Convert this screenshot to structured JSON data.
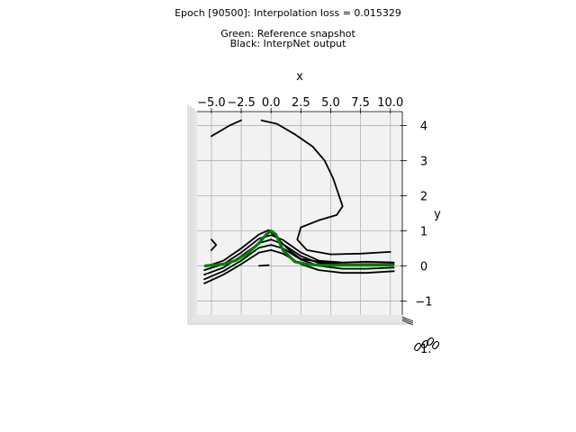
{
  "figure": {
    "title_lines": [
      "Epoch [90500]: Interpolation loss = 0.015329",
      "",
      "Green: Reference snapshot",
      "Black: InterpNet output"
    ]
  },
  "chart_data": {
    "type": "line",
    "projection": "3d",
    "title": "Epoch [90500]: Interpolation loss = 0.015329",
    "legend_text": [
      "Green: Reference snapshot",
      "Black: InterpNet output"
    ],
    "xlabel": "x",
    "ylabel": "y",
    "zlabel": "",
    "x_ticks": [
      "−5.0",
      "−2.5",
      "0.0",
      "2.5",
      "5.0",
      "7.5",
      "10.0"
    ],
    "y_ticks": [
      "−1",
      "0",
      "1",
      "2",
      "3",
      "4"
    ],
    "x_tick_values": [
      -5,
      -2.5,
      0,
      2.5,
      5,
      7.5,
      10
    ],
    "y_tick_values": [
      -1,
      0,
      1,
      2,
      3,
      4
    ],
    "xlim": [
      -6.2,
      11.0
    ],
    "ylim": [
      -1.4,
      4.4
    ],
    "grid": true,
    "colors": {
      "reference": "#007f00",
      "interp": "#000000",
      "pane": "#f2f2f2",
      "grid": "#b0b0b0"
    },
    "series": [
      {
        "name": "Reference snapshot",
        "color": "#007f00",
        "x": [
          -5.5,
          -4,
          -3,
          -2,
          -1,
          -0.4,
          0,
          0.4,
          1,
          2,
          3,
          4,
          6,
          8,
          10.2
        ],
        "y": [
          0.0,
          0.05,
          0.15,
          0.35,
          0.65,
          0.9,
          1.0,
          0.9,
          0.45,
          0.12,
          0.05,
          0.02,
          0.02,
          0.02,
          0.02
        ]
      },
      {
        "name": "",
        "color": "#000000",
        "x": [
          -5.6,
          -4,
          -2.5,
          -1,
          0,
          1,
          2.5,
          4,
          6,
          8,
          10.3
        ],
        "y": [
          -0.5,
          -0.25,
          0.05,
          0.38,
          0.45,
          0.35,
          0.05,
          -0.12,
          -0.2,
          -0.2,
          -0.15
        ]
      },
      {
        "name": "",
        "color": "#000000",
        "x": [
          -5.6,
          -4,
          -2.5,
          -1,
          0,
          1,
          2.5,
          4,
          6,
          8,
          10.3
        ],
        "y": [
          -0.38,
          -0.15,
          0.15,
          0.52,
          0.6,
          0.5,
          0.18,
          0.0,
          -0.08,
          -0.08,
          -0.05
        ]
      },
      {
        "name": "",
        "color": "#000000",
        "x": [
          -5.6,
          -4,
          -2.5,
          -1,
          0,
          1,
          2.5,
          4,
          6,
          8,
          10.3
        ],
        "y": [
          -0.25,
          -0.05,
          0.28,
          0.65,
          0.75,
          0.62,
          0.28,
          0.08,
          0.03,
          0.05,
          0.05
        ]
      },
      {
        "name": "",
        "color": "#000000",
        "x": [
          -5.6,
          -4,
          -2.5,
          -1,
          0,
          1,
          2.5,
          4,
          6,
          8,
          10.3
        ],
        "y": [
          -0.12,
          0.05,
          0.38,
          0.78,
          0.88,
          0.74,
          0.38,
          0.15,
          0.1,
          0.12,
          0.1
        ]
      },
      {
        "name": "",
        "color": "#000000",
        "x": [
          -5.5,
          -4,
          -2.5,
          -1,
          -0.2,
          0.5,
          1.5,
          2.5,
          4,
          6,
          8,
          10.2
        ],
        "y": [
          -0.02,
          0.15,
          0.5,
          0.9,
          1.02,
          0.8,
          0.45,
          0.2,
          0.12,
          0.05,
          0.05,
          0.05
        ]
      },
      {
        "name": "",
        "color": "#000000",
        "x": [
          -5,
          -3.5,
          -2.5
        ],
        "y": [
          3.7,
          4.0,
          4.15
        ]
      },
      {
        "name": "",
        "color": "#000000",
        "x": [
          -0.8,
          0.5,
          2,
          3.5,
          4.5,
          5.2,
          6,
          5.5,
          4,
          2.5,
          2.2,
          3,
          5,
          7.5,
          10
        ],
        "y": [
          4.15,
          4.05,
          3.75,
          3.4,
          3.0,
          2.5,
          1.7,
          1.45,
          1.3,
          1.1,
          0.75,
          0.45,
          0.33,
          0.35,
          0.4
        ]
      },
      {
        "name": "",
        "color": "#000000",
        "x": [
          -5,
          -4.6,
          -5
        ],
        "y": [
          0.75,
          0.6,
          0.45
        ]
      },
      {
        "name": "",
        "color": "#000000",
        "x": [
          -1.0,
          -0.2
        ],
        "y": [
          0.0,
          0.02
        ]
      }
    ]
  }
}
